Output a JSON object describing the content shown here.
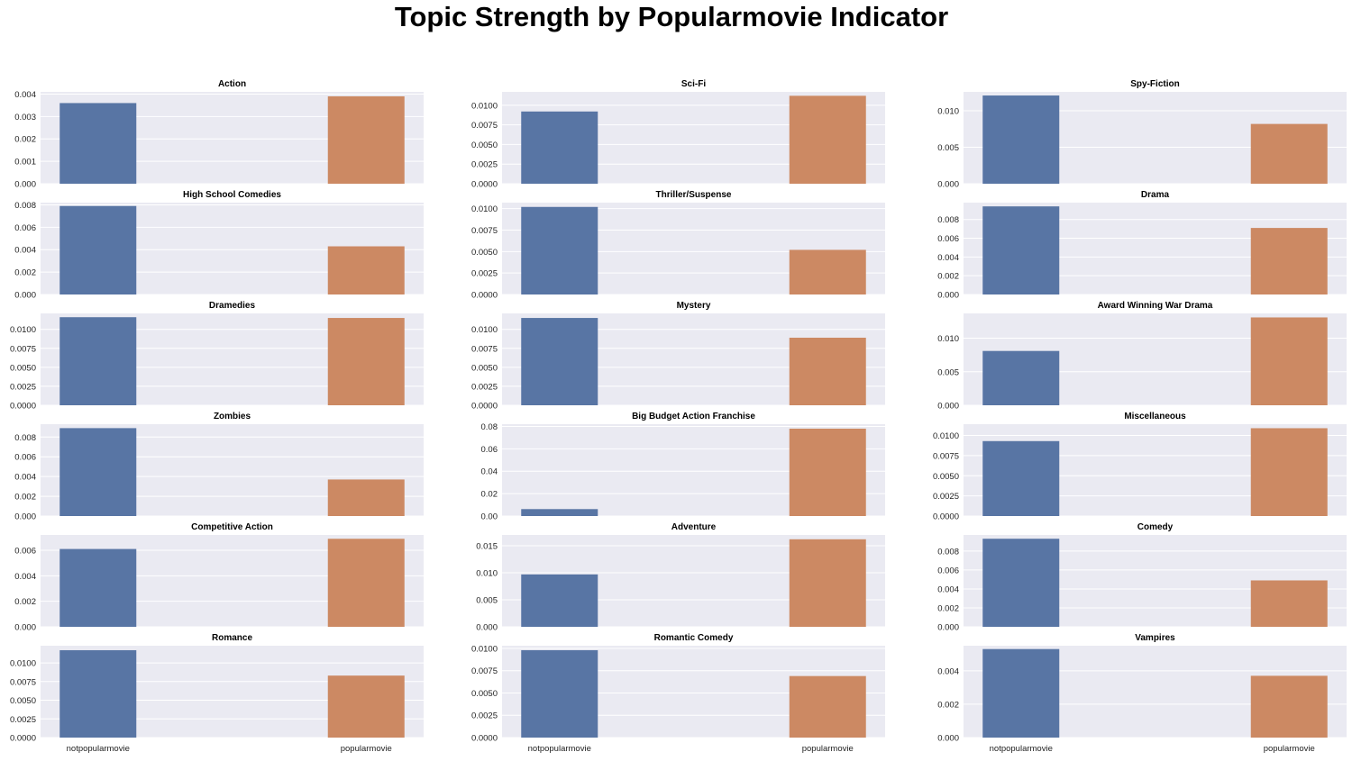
{
  "figure": {
    "title": "Topic Strength by Popularmovie Indicator"
  },
  "style": {
    "panel_bg": "#eaeaf2",
    "grid_color": "#ffffff",
    "series_colors": [
      "#5875a4",
      "#cc8963"
    ]
  },
  "chart_data": [
    {
      "type": "bar",
      "title": "Action",
      "categories": [
        "notpopularmovie",
        "popularmovie"
      ],
      "values": [
        0.0036,
        0.0039
      ],
      "ylim": [
        0,
        0.0041
      ],
      "yticks": [
        0,
        0.001,
        0.002,
        0.003,
        0.004
      ],
      "ytick_labels": [
        "0.000",
        "0.001",
        "0.002",
        "0.003",
        "0.004"
      ],
      "show_xticklabels": false,
      "grid": true
    },
    {
      "type": "bar",
      "title": "Sci-Fi",
      "categories": [
        "notpopularmovie",
        "popularmovie"
      ],
      "values": [
        0.0092,
        0.0112
      ],
      "ylim": [
        0,
        0.0117
      ],
      "yticks": [
        0,
        0.0025,
        0.005,
        0.0075,
        0.01
      ],
      "ytick_labels": [
        "0.0000",
        "0.0025",
        "0.0050",
        "0.0075",
        "0.0100"
      ],
      "show_xticklabels": false,
      "grid": true
    },
    {
      "type": "bar",
      "title": "Spy-Fiction",
      "categories": [
        "notpopularmovie",
        "popularmovie"
      ],
      "values": [
        0.0121,
        0.0082
      ],
      "ylim": [
        0,
        0.0126
      ],
      "yticks": [
        0,
        0.005,
        0.01
      ],
      "ytick_labels": [
        "0.000",
        "0.005",
        "0.010"
      ],
      "show_xticklabels": false,
      "grid": true
    },
    {
      "type": "bar",
      "title": "High School Comedies",
      "categories": [
        "notpopularmovie",
        "popularmovie"
      ],
      "values": [
        0.0079,
        0.0043
      ],
      "ylim": [
        0,
        0.0082
      ],
      "yticks": [
        0,
        0.002,
        0.004,
        0.006,
        0.008
      ],
      "ytick_labels": [
        "0.000",
        "0.002",
        "0.004",
        "0.006",
        "0.008"
      ],
      "show_xticklabels": false,
      "grid": true
    },
    {
      "type": "bar",
      "title": "Thriller/Suspense",
      "categories": [
        "notpopularmovie",
        "popularmovie"
      ],
      "values": [
        0.0102,
        0.0052
      ],
      "ylim": [
        0,
        0.0107
      ],
      "yticks": [
        0,
        0.0025,
        0.005,
        0.0075,
        0.01
      ],
      "ytick_labels": [
        "0.0000",
        "0.0025",
        "0.0050",
        "0.0075",
        "0.0100"
      ],
      "show_xticklabels": false,
      "grid": true
    },
    {
      "type": "bar",
      "title": "Drama",
      "categories": [
        "notpopularmovie",
        "popularmovie"
      ],
      "values": [
        0.0094,
        0.0071
      ],
      "ylim": [
        0,
        0.0098
      ],
      "yticks": [
        0,
        0.002,
        0.004,
        0.006,
        0.008
      ],
      "ytick_labels": [
        "0.000",
        "0.002",
        "0.004",
        "0.006",
        "0.008"
      ],
      "show_xticklabels": false,
      "grid": true
    },
    {
      "type": "bar",
      "title": "Dramedies",
      "categories": [
        "notpopularmovie",
        "popularmovie"
      ],
      "values": [
        0.0116,
        0.0115
      ],
      "ylim": [
        0,
        0.0121
      ],
      "yticks": [
        0,
        0.0025,
        0.005,
        0.0075,
        0.01
      ],
      "ytick_labels": [
        "0.0000",
        "0.0025",
        "0.0050",
        "0.0075",
        "0.0100"
      ],
      "show_xticklabels": false,
      "grid": true
    },
    {
      "type": "bar",
      "title": "Mystery",
      "categories": [
        "notpopularmovie",
        "popularmovie"
      ],
      "values": [
        0.0115,
        0.0089
      ],
      "ylim": [
        0,
        0.0121
      ],
      "yticks": [
        0,
        0.0025,
        0.005,
        0.0075,
        0.01
      ],
      "ytick_labels": [
        "0.0000",
        "0.0025",
        "0.0050",
        "0.0075",
        "0.0100"
      ],
      "show_xticklabels": false,
      "grid": true
    },
    {
      "type": "bar",
      "title": "Award Winning War Drama",
      "categories": [
        "notpopularmovie",
        "popularmovie"
      ],
      "values": [
        0.0081,
        0.0131
      ],
      "ylim": [
        0,
        0.0137
      ],
      "yticks": [
        0,
        0.005,
        0.01
      ],
      "ytick_labels": [
        "0.000",
        "0.005",
        "0.010"
      ],
      "show_xticklabels": false,
      "grid": true
    },
    {
      "type": "bar",
      "title": "Zombies",
      "categories": [
        "notpopularmovie",
        "popularmovie"
      ],
      "values": [
        0.0089,
        0.0037
      ],
      "ylim": [
        0,
        0.0093
      ],
      "yticks": [
        0,
        0.002,
        0.004,
        0.006,
        0.008
      ],
      "ytick_labels": [
        "0.000",
        "0.002",
        "0.004",
        "0.006",
        "0.008"
      ],
      "show_xticklabels": false,
      "grid": true
    },
    {
      "type": "bar",
      "title": "Big Budget Action Franchise",
      "categories": [
        "notpopularmovie",
        "popularmovie"
      ],
      "values": [
        0.0062,
        0.078
      ],
      "ylim": [
        0,
        0.082
      ],
      "yticks": [
        0,
        0.02,
        0.04,
        0.06,
        0.08
      ],
      "ytick_labels": [
        "0.00",
        "0.02",
        "0.04",
        "0.06",
        "0.08"
      ],
      "show_xticklabels": false,
      "grid": true
    },
    {
      "type": "bar",
      "title": "Miscellaneous",
      "categories": [
        "notpopularmovie",
        "popularmovie"
      ],
      "values": [
        0.0093,
        0.0109
      ],
      "ylim": [
        0,
        0.0114
      ],
      "yticks": [
        0,
        0.0025,
        0.005,
        0.0075,
        0.01
      ],
      "ytick_labels": [
        "0.0000",
        "0.0025",
        "0.0050",
        "0.0075",
        "0.0100"
      ],
      "show_xticklabels": false,
      "grid": true
    },
    {
      "type": "bar",
      "title": "Competitive Action",
      "categories": [
        "notpopularmovie",
        "popularmovie"
      ],
      "values": [
        0.0061,
        0.0069
      ],
      "ylim": [
        0,
        0.0072
      ],
      "yticks": [
        0,
        0.002,
        0.004,
        0.006
      ],
      "ytick_labels": [
        "0.000",
        "0.002",
        "0.004",
        "0.006"
      ],
      "show_xticklabels": false,
      "grid": true
    },
    {
      "type": "bar",
      "title": "Adventure",
      "categories": [
        "notpopularmovie",
        "popularmovie"
      ],
      "values": [
        0.0097,
        0.0162
      ],
      "ylim": [
        0,
        0.017
      ],
      "yticks": [
        0,
        0.005,
        0.01,
        0.015
      ],
      "ytick_labels": [
        "0.000",
        "0.005",
        "0.010",
        "0.015"
      ],
      "show_xticklabels": false,
      "grid": true
    },
    {
      "type": "bar",
      "title": "Comedy",
      "categories": [
        "notpopularmovie",
        "popularmovie"
      ],
      "values": [
        0.0093,
        0.0049
      ],
      "ylim": [
        0,
        0.0097
      ],
      "yticks": [
        0,
        0.002,
        0.004,
        0.006,
        0.008
      ],
      "ytick_labels": [
        "0.000",
        "0.002",
        "0.004",
        "0.006",
        "0.008"
      ],
      "show_xticklabels": false,
      "grid": true
    },
    {
      "type": "bar",
      "title": "Romance",
      "categories": [
        "notpopularmovie",
        "popularmovie"
      ],
      "values": [
        0.0117,
        0.0083
      ],
      "ylim": [
        0,
        0.0123
      ],
      "yticks": [
        0,
        0.0025,
        0.005,
        0.0075,
        0.01
      ],
      "ytick_labels": [
        "0.0000",
        "0.0025",
        "0.0050",
        "0.0075",
        "0.0100"
      ],
      "show_xticklabels": true,
      "grid": true
    },
    {
      "type": "bar",
      "title": "Romantic Comedy",
      "categories": [
        "notpopularmovie",
        "popularmovie"
      ],
      "values": [
        0.0098,
        0.0069
      ],
      "ylim": [
        0,
        0.0103
      ],
      "yticks": [
        0,
        0.0025,
        0.005,
        0.0075,
        0.01
      ],
      "ytick_labels": [
        "0.0000",
        "0.0025",
        "0.0050",
        "0.0075",
        "0.0100"
      ],
      "show_xticklabels": true,
      "grid": true
    },
    {
      "type": "bar",
      "title": "Vampires",
      "categories": [
        "notpopularmovie",
        "popularmovie"
      ],
      "values": [
        0.0053,
        0.0037
      ],
      "ylim": [
        0,
        0.0055
      ],
      "yticks": [
        0,
        0.002,
        0.004
      ],
      "ytick_labels": [
        "0.000",
        "0.002",
        "0.004"
      ],
      "show_xticklabels": true,
      "grid": true
    }
  ]
}
